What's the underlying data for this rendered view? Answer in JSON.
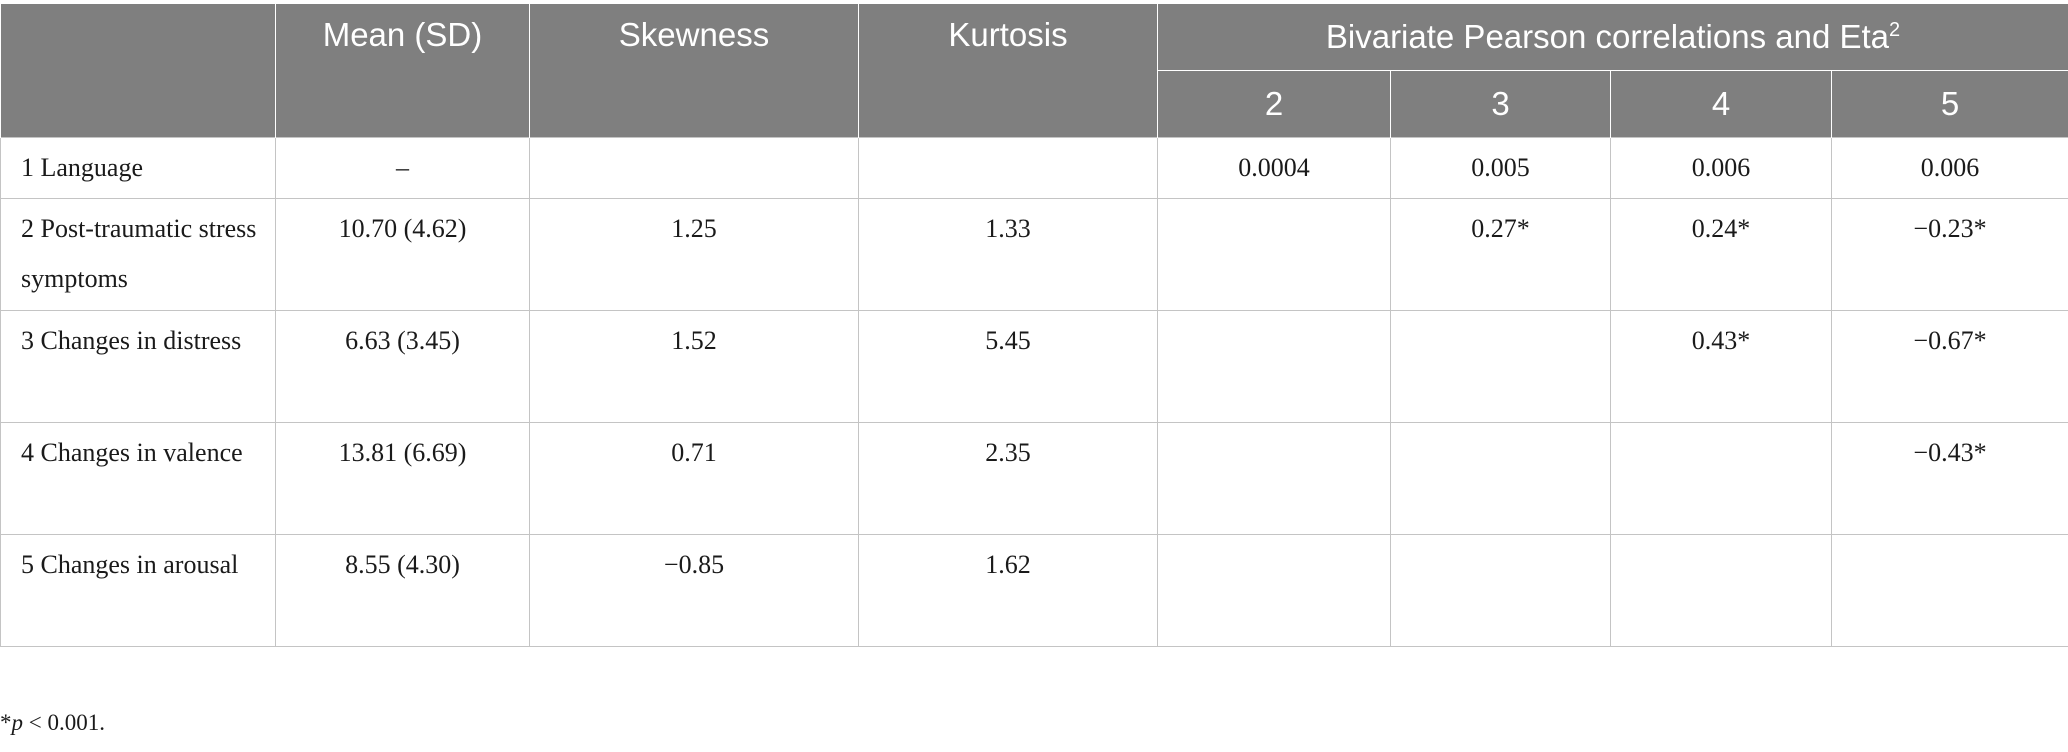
{
  "table": {
    "headers": {
      "mean": "Mean (SD)",
      "skewness": "Skewness",
      "kurtosis": "Kurtosis",
      "group": "Bivariate Pearson correlations and Eta",
      "group_sup": "2",
      "corr_cols": [
        "2",
        "3",
        "4",
        "5"
      ]
    },
    "rows": [
      {
        "label": "1 Language",
        "mean_sd": "–",
        "skewness": "",
        "kurtosis": "",
        "c2": "0.0004",
        "c3": "0.005",
        "c4": "0.006",
        "c5": "0.006"
      },
      {
        "label": "2 Post-traumatic stress symptoms",
        "mean_sd": "10.70 (4.62)",
        "skewness": "1.25",
        "kurtosis": "1.33",
        "c2": "",
        "c3": "0.27*",
        "c4": "0.24*",
        "c5": "−0.23*"
      },
      {
        "label": "3 Changes in distress",
        "mean_sd": "6.63 (3.45)",
        "skewness": "1.52",
        "kurtosis": "5.45",
        "c2": "",
        "c3": "",
        "c4": "0.43*",
        "c5": "−0.67*"
      },
      {
        "label": "4 Changes in valence",
        "mean_sd": "13.81 (6.69)",
        "skewness": "0.71",
        "kurtosis": "2.35",
        "c2": "",
        "c3": "",
        "c4": "",
        "c5": "−0.43*"
      },
      {
        "label": "5 Changes in arousal",
        "mean_sd": "8.55 (4.30)",
        "skewness": "−0.85",
        "kurtosis": "1.62",
        "c2": "",
        "c3": "",
        "c4": "",
        "c5": ""
      }
    ]
  },
  "footnote": {
    "star": "*",
    "p": "p",
    "rest": " < 0.001."
  },
  "colors": {
    "header_bg": "#7f7f7f",
    "header_text": "#ffffff",
    "grid": "#c4c4c4"
  }
}
